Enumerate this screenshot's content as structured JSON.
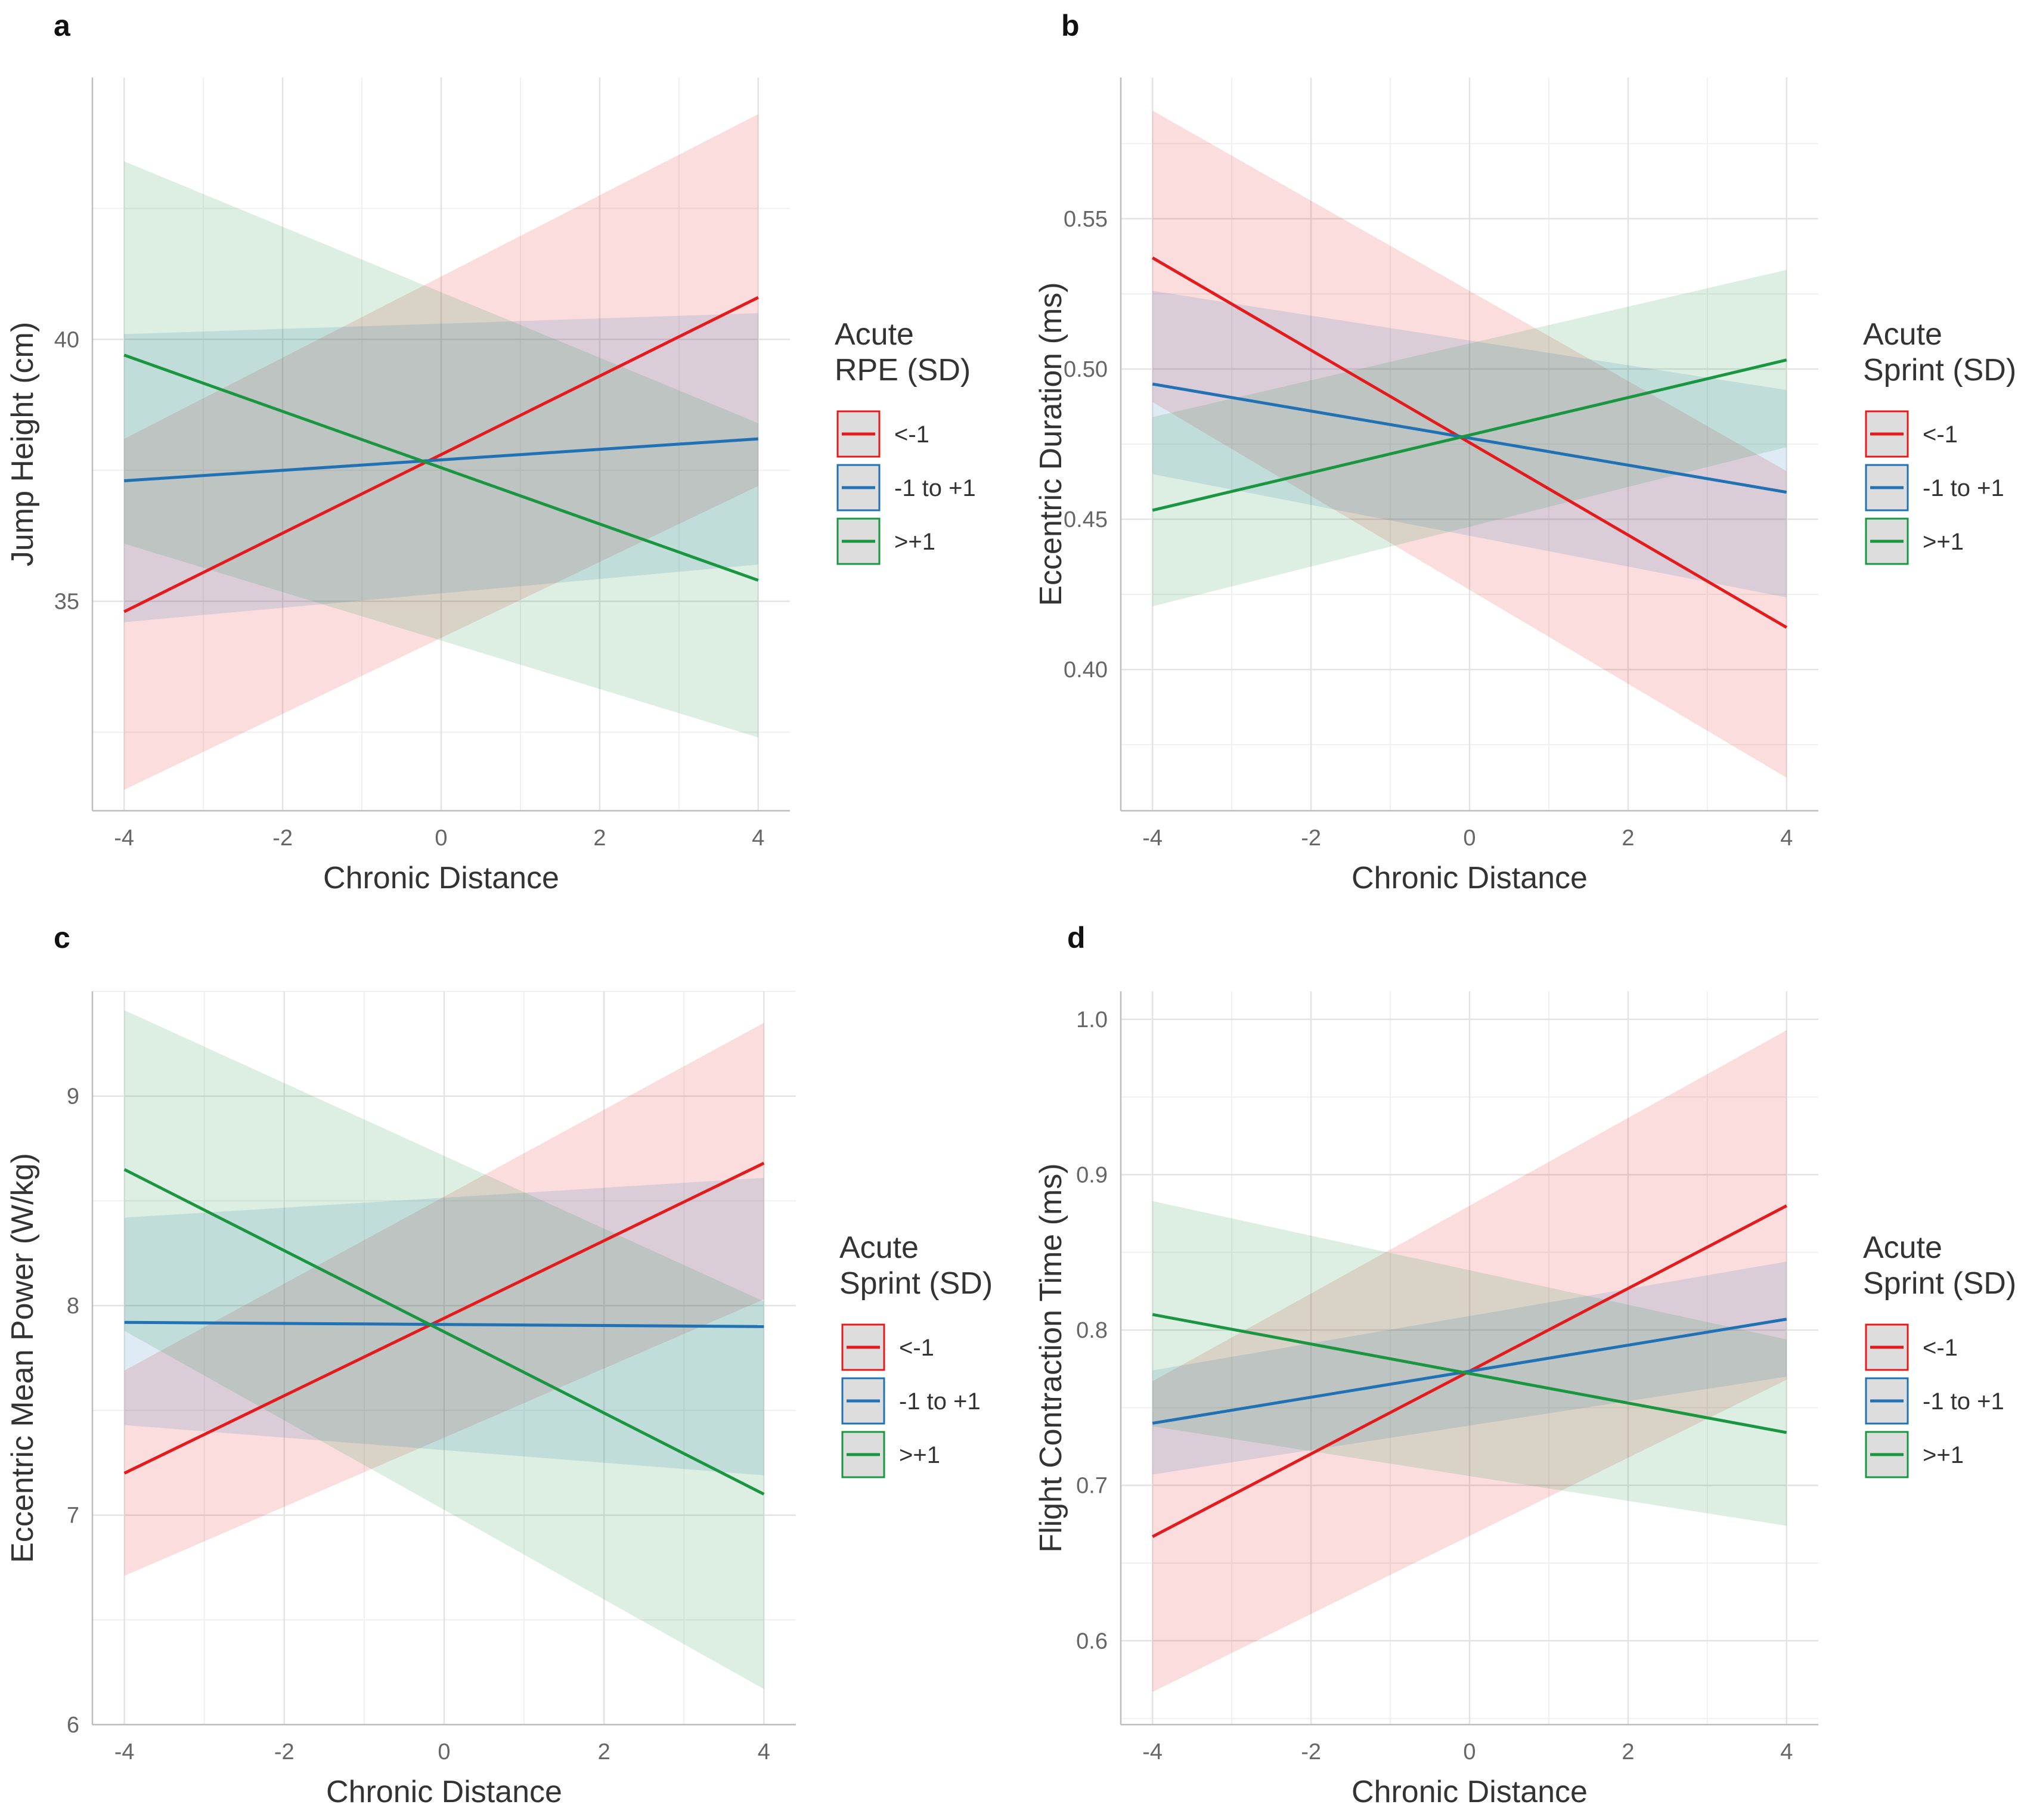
{
  "chart_data": [
    {
      "panel": "a",
      "type": "line",
      "xlabel": "Chronic Distance",
      "ylabel": "Jump Height (cm)",
      "xlim": [
        -4.4,
        4.4
      ],
      "ylim": [
        31,
        45
      ],
      "xticks": [
        -4,
        -2,
        0,
        2,
        4
      ],
      "xtick_labels": [
        "-4",
        "-2",
        "0",
        "2",
        "4"
      ],
      "yticks": [
        35,
        40
      ],
      "ytick_labels": [
        "35",
        "40"
      ],
      "legend_title": [
        "Acute",
        "RPE (SD)"
      ],
      "series": [
        {
          "name": "<-1",
          "label": "<-1",
          "color": "#e41a1c",
          "x": [
            -4,
            4
          ],
          "y": [
            34.8,
            40.8
          ],
          "lower": [
            31.4,
            37.2
          ],
          "upper": [
            38.1,
            44.3
          ]
        },
        {
          "name": "-1 to +1",
          "label": "-1 to +1",
          "color": "#2171b5",
          "x": [
            -4,
            4
          ],
          "y": [
            37.3,
            38.1
          ],
          "lower": [
            34.6,
            35.7
          ],
          "upper": [
            40.1,
            40.5
          ]
        },
        {
          "name": ">+1",
          "label": ">+1",
          "color": "#1a9641",
          "x": [
            -4,
            4
          ],
          "y": [
            39.7,
            35.4
          ],
          "lower": [
            36.1,
            32.4
          ],
          "upper": [
            43.4,
            38.4
          ]
        }
      ]
    },
    {
      "panel": "b",
      "type": "line",
      "xlabel": "Chronic Distance",
      "ylabel": "Eccentric Duration (ms)",
      "xlim": [
        -4.4,
        4.4
      ],
      "ylim": [
        0.353,
        0.597
      ],
      "xticks": [
        -4,
        -2,
        0,
        2,
        4
      ],
      "xtick_labels": [
        "-4",
        "-2",
        "0",
        "2",
        "4"
      ],
      "yticks": [
        0.4,
        0.45,
        0.5,
        0.55
      ],
      "ytick_labels": [
        "0.40",
        "0.45",
        "0.50",
        "0.55"
      ],
      "legend_title": [
        "Acute",
        "Sprint (SD)"
      ],
      "series": [
        {
          "name": "<-1",
          "label": "<-1",
          "color": "#e41a1c",
          "x": [
            -4,
            4
          ],
          "y": [
            0.537,
            0.414
          ],
          "lower": [
            0.489,
            0.364
          ],
          "upper": [
            0.586,
            0.466
          ]
        },
        {
          "name": "-1 to +1",
          "label": "-1 to +1",
          "color": "#2171b5",
          "x": [
            -4,
            4
          ],
          "y": [
            0.495,
            0.459
          ],
          "lower": [
            0.465,
            0.424
          ],
          "upper": [
            0.526,
            0.493
          ]
        },
        {
          "name": ">+1",
          "label": ">+1",
          "color": "#1a9641",
          "x": [
            -4,
            4
          ],
          "y": [
            0.453,
            0.503
          ],
          "lower": [
            0.421,
            0.474
          ],
          "upper": [
            0.484,
            0.533
          ]
        }
      ]
    },
    {
      "panel": "c",
      "type": "line",
      "xlabel": "Chronic Distance",
      "ylabel": "Eccentric Mean Power (W/kg)",
      "xlim": [
        -4.4,
        4.4
      ],
      "ylim": [
        6,
        9.5
      ],
      "xticks": [
        -4,
        -2,
        0,
        2,
        4
      ],
      "xtick_labels": [
        "-4",
        "-2",
        "0",
        "2",
        "4"
      ],
      "yticks": [
        6,
        7,
        8,
        9
      ],
      "ytick_labels": [
        "6",
        "7",
        "8",
        "9"
      ],
      "legend_title": [
        "Acute",
        "Sprint (SD)"
      ],
      "series": [
        {
          "name": "<-1",
          "label": "<-1",
          "color": "#e41a1c",
          "x": [
            -4,
            4
          ],
          "y": [
            7.2,
            8.68
          ],
          "lower": [
            6.71,
            8.03
          ],
          "upper": [
            7.69,
            9.35
          ]
        },
        {
          "name": "-1 to +1",
          "label": "-1 to +1",
          "color": "#2171b5",
          "x": [
            -4,
            4
          ],
          "y": [
            7.92,
            7.9
          ],
          "lower": [
            7.43,
            7.19
          ],
          "upper": [
            8.42,
            8.61
          ]
        },
        {
          "name": ">+1",
          "label": ">+1",
          "color": "#1a9641",
          "x": [
            -4,
            4
          ],
          "y": [
            8.65,
            7.1
          ],
          "lower": [
            7.88,
            6.17
          ],
          "upper": [
            9.41,
            8.02
          ]
        }
      ]
    },
    {
      "panel": "d",
      "type": "line",
      "xlabel": "Chronic Distance",
      "ylabel": "Flight Contraction Time (ms)",
      "xlim": [
        -4.4,
        4.4
      ],
      "ylim": [
        0.546,
        1.018
      ],
      "xticks": [
        -4,
        -2,
        0,
        2,
        4
      ],
      "xtick_labels": [
        "-4",
        "-2",
        "0",
        "2",
        "4"
      ],
      "yticks": [
        0.6,
        0.7,
        0.8,
        0.9,
        1.0
      ],
      "ytick_labels": [
        "0.6",
        "0.7",
        "0.8",
        "0.9",
        "1.0"
      ],
      "legend_title": [
        "Acute",
        "Sprint (SD)"
      ],
      "series": [
        {
          "name": "<-1",
          "label": "<-1",
          "color": "#e41a1c",
          "x": [
            -4,
            4
          ],
          "y": [
            0.667,
            0.88
          ],
          "lower": [
            0.567,
            0.768
          ],
          "upper": [
            0.767,
            0.993
          ]
        },
        {
          "name": "-1 to +1",
          "label": "-1 to +1",
          "color": "#2171b5",
          "x": [
            -4,
            4
          ],
          "y": [
            0.74,
            0.807
          ],
          "lower": [
            0.707,
            0.77
          ],
          "upper": [
            0.774,
            0.844
          ]
        },
        {
          "name": ">+1",
          "label": ">+1",
          "color": "#1a9641",
          "x": [
            -4,
            4
          ],
          "y": [
            0.81,
            0.734
          ],
          "lower": [
            0.738,
            0.674
          ],
          "upper": [
            0.883,
            0.794
          ]
        }
      ]
    }
  ]
}
